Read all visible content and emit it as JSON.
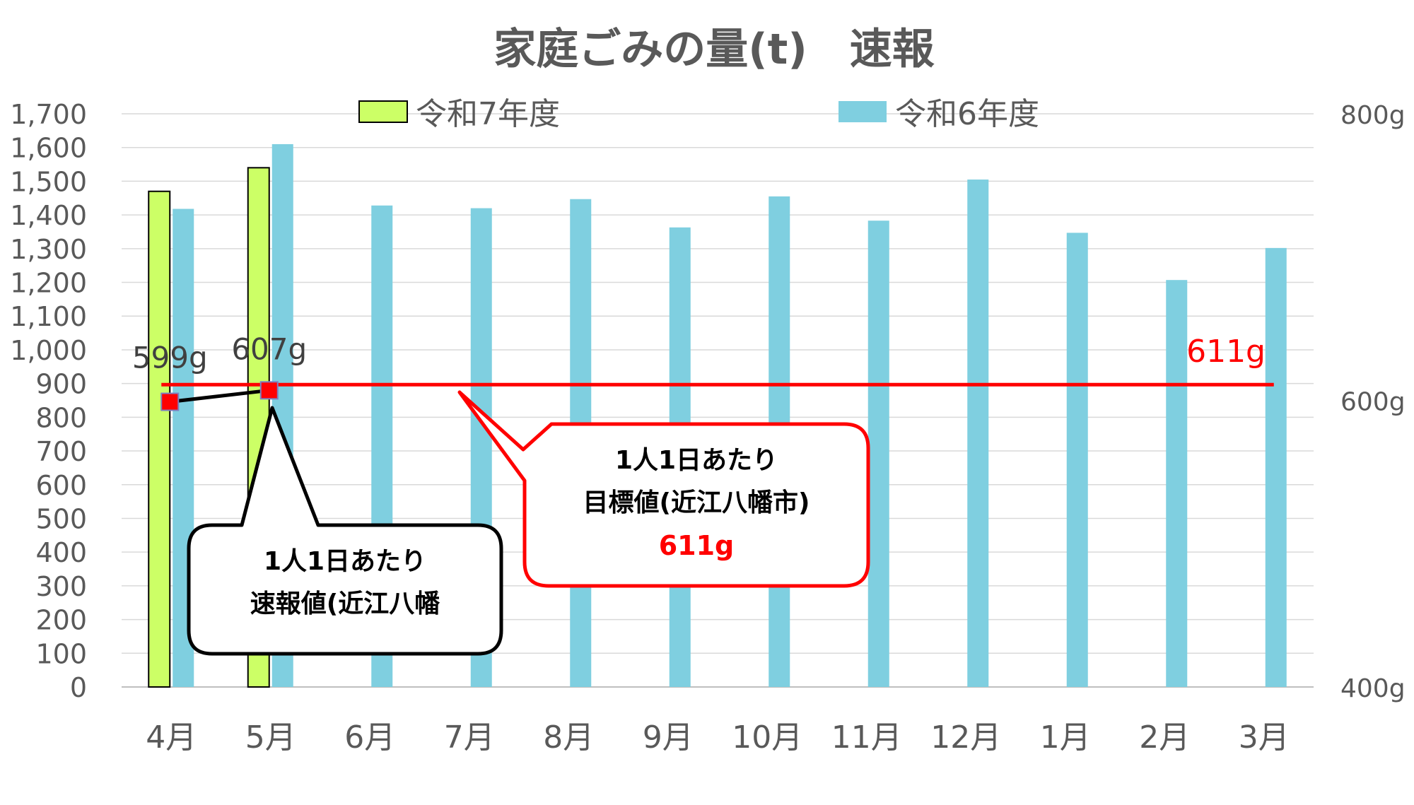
{
  "chart_data": {
    "type": "bar",
    "title": "家庭ごみの量(t)　速報",
    "categories": [
      "4月",
      "5月",
      "6月",
      "7月",
      "8月",
      "9月",
      "10月",
      "11月",
      "12月",
      "1月",
      "2月",
      "3月"
    ],
    "series": [
      {
        "name": "令和7年度",
        "color": "#ccff66",
        "values": [
          1470,
          1540,
          null,
          null,
          null,
          null,
          null,
          null,
          null,
          null,
          null,
          null
        ]
      },
      {
        "name": "令和6年度",
        "color": "#7fcfe0",
        "values": [
          1418,
          1610,
          1428,
          1420,
          1447,
          1363,
          1455,
          1383,
          1505,
          1347,
          1207,
          1302
        ]
      }
    ],
    "ylim": [
      0,
      1700
    ],
    "yticks": [
      "0",
      "100",
      "200",
      "300",
      "400",
      "500",
      "600",
      "700",
      "800",
      "900",
      "1,000",
      "1,100",
      "1,200",
      "1,300",
      "1,400",
      "1,500",
      "1,600",
      "1,700"
    ],
    "y2lim": [
      400,
      800
    ],
    "y2ticks": [
      "400g",
      "600g",
      "800g"
    ],
    "line_series": {
      "name": "1人1日あたり速報値",
      "color": "#ff0000",
      "points": [
        {
          "x": "4月",
          "y": 599,
          "label": "599g"
        },
        {
          "x": "5月",
          "y": 607,
          "label": "607g"
        }
      ]
    },
    "target": {
      "value": 611,
      "label": "611g",
      "color": "#ff0000"
    },
    "grid": true,
    "legend": "top"
  },
  "callouts": {
    "target": {
      "line1": "1人1日あたり",
      "line2": "目標値(近江八幡市)",
      "value": "611g"
    },
    "actual": {
      "line1": "1人1日あたり",
      "line2": "速報値(近江八幡"
    }
  }
}
